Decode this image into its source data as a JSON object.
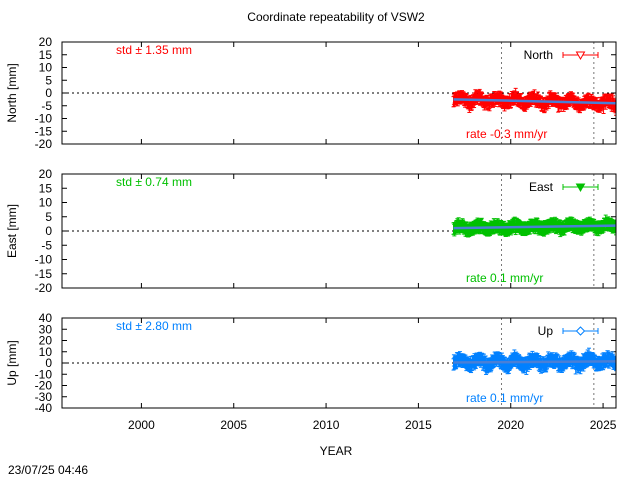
{
  "chart_data": {
    "type": "scatter",
    "title": "Coordinate repeatability of VSW2",
    "xlabel": "YEAR",
    "xlim": [
      1995.7,
      2025.7
    ],
    "x_ticks": [
      "2000",
      "2005",
      "2010",
      "2015",
      "2020",
      "2025"
    ],
    "x_tick_values": [
      2000,
      2005,
      2010,
      2015,
      2020,
      2025
    ],
    "timestamp": "23/07/25 04:46",
    "vertical_lines": [
      2019.5,
      2024.5
    ],
    "zero_line": 0,
    "panels": [
      {
        "name": "North",
        "ylabel": "North [mm]",
        "ylim": [
          -20,
          20
        ],
        "y_ticks": [
          "20",
          "15",
          "10",
          "5",
          "0",
          "-5",
          "-10",
          "-15",
          "-20"
        ],
        "y_tick_values": [
          20,
          15,
          10,
          5,
          0,
          -5,
          -10,
          -15,
          -20
        ],
        "std_text": "std ± 1.35 mm",
        "rate_text": "rate -0.3 mm/yr",
        "legend": "North",
        "marker": "triangle-down-open",
        "color": "#ff0000",
        "trend_color": "#4a7fd6",
        "data_start": 2016.9,
        "data_end": 2025.7,
        "trend": [
          [
            2016.9,
            -2.5
          ],
          [
            2025.7,
            -4.0
          ]
        ],
        "spread": 1.35,
        "error": 2.0
      },
      {
        "name": "East",
        "ylabel": "East [mm]",
        "ylim": [
          -20,
          20
        ],
        "y_ticks": [
          "20",
          "15",
          "10",
          "5",
          "0",
          "-5",
          "-10",
          "-15",
          "-20"
        ],
        "y_tick_values": [
          20,
          15,
          10,
          5,
          0,
          -5,
          -10,
          -15,
          -20
        ],
        "std_text": "std ± 0.74 mm",
        "rate_text": "rate  0.1 mm/yr",
        "legend": "East",
        "marker": "triangle-down-filled",
        "color": "#00c000",
        "trend_color": "#4a7fd6",
        "data_start": 2016.9,
        "data_end": 2025.7,
        "trend": [
          [
            2016.9,
            1.0
          ],
          [
            2025.7,
            1.9
          ]
        ],
        "spread": 0.74,
        "error": 2.0
      },
      {
        "name": "Up",
        "ylabel": "Up [mm]",
        "ylim": [
          -40,
          40
        ],
        "y_ticks": [
          "40",
          "30",
          "20",
          "10",
          "0",
          "-10",
          "-20",
          "-30",
          "-40"
        ],
        "y_tick_values": [
          40,
          30,
          20,
          10,
          0,
          -10,
          -20,
          -30,
          -40
        ],
        "std_text": "std ± 2.80 mm",
        "rate_text": "rate  0.1 mm/yr",
        "legend": "Up",
        "marker": "diamond-open",
        "color": "#0080ff",
        "trend_color": "#4a7fd6",
        "data_start": 2016.9,
        "data_end": 2025.7,
        "trend": [
          [
            2016.9,
            0.5
          ],
          [
            2025.7,
            1.4
          ]
        ],
        "spread": 2.8,
        "error": 5.0
      }
    ]
  }
}
